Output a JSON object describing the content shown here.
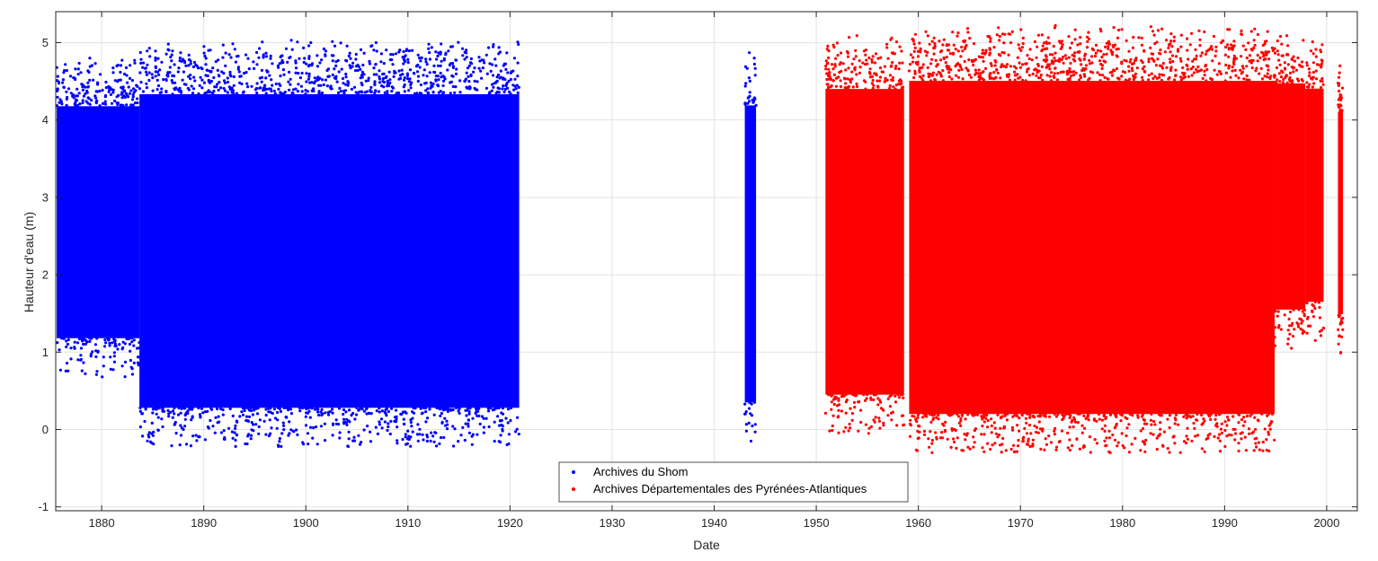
{
  "chart_data": {
    "type": "scatter",
    "title": "",
    "xlabel": "Date",
    "ylabel": "Hauteur d'eau (m)",
    "x_axis_type": "date (years)",
    "xlim": [
      1875.5,
      2003
    ],
    "ylim": [
      -1.05,
      5.4
    ],
    "xticks": [
      1880,
      1890,
      1900,
      1910,
      1920,
      1930,
      1940,
      1950,
      1960,
      1970,
      1980,
      1990,
      2000
    ],
    "yticks": [
      -1,
      0,
      1,
      2,
      3,
      4,
      5
    ],
    "grid": true,
    "legend_position": "bottom-center",
    "series": [
      {
        "name": "Archives du Shom",
        "color": "#0000ff",
        "marker": "dot",
        "segments": [
          {
            "x_start": 1875.6,
            "x_end": 1883.7,
            "y_min": 0.68,
            "y_max": 4.8
          },
          {
            "x_start": 1883.7,
            "x_end": 1920.9,
            "y_min": -0.22,
            "y_max": 5.03
          },
          {
            "x_start": 1943.0,
            "x_end": 1944.1,
            "y_min": -0.15,
            "y_max": 4.87
          }
        ]
      },
      {
        "name": "Archives Départementales des Pyrénées-Atlantiques",
        "color": "#ff0000",
        "marker": "dot",
        "segments": [
          {
            "x_start": 1950.9,
            "x_end": 1958.6,
            "y_min": -0.05,
            "y_max": 5.09
          },
          {
            "x_start": 1959.1,
            "x_end": 1994.9,
            "y_min": -0.3,
            "y_max": 5.22
          },
          {
            "x_start": 1994.9,
            "x_end": 1997.9,
            "y_min": 1.05,
            "y_max": 5.09
          },
          {
            "x_start": 1997.9,
            "x_end": 1999.7,
            "y_min": 1.15,
            "y_max": 5.01
          },
          {
            "x_start": 2001.1,
            "x_end": 2001.6,
            "y_min": 0.99,
            "y_max": 4.7
          }
        ]
      }
    ]
  }
}
